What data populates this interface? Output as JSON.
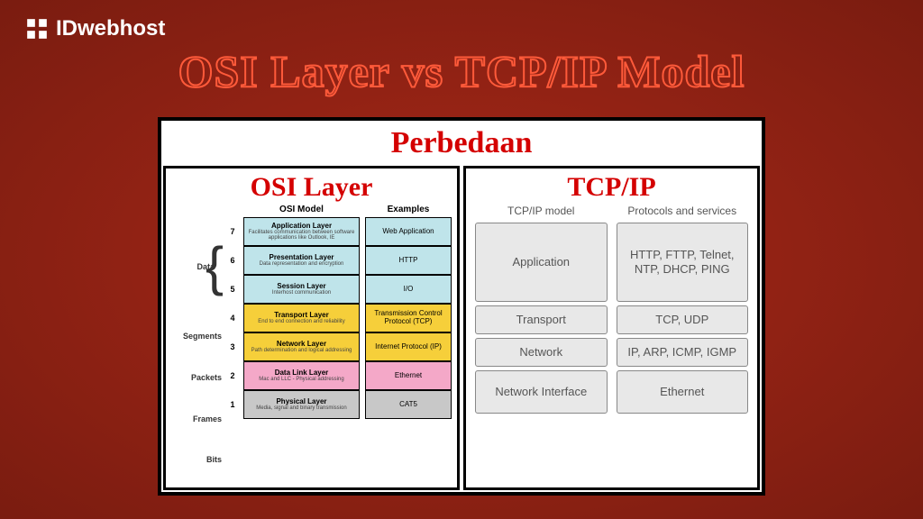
{
  "logo_text": "IDwebhost",
  "main_title": "OSI Layer vs TCP/IP Model",
  "panel_title": "Perbedaan",
  "osi": {
    "title": "OSI Layer",
    "model_header": "OSI Model",
    "examples_header": "Examples",
    "units": {
      "data": "Data",
      "segments": "Segments",
      "packets": "Packets",
      "frames": "Frames",
      "bits": "Bits"
    },
    "layers": [
      {
        "num": "7",
        "name": "Application Layer",
        "sub": "Facilitates communication between software applications like Outlook, IE",
        "color": "#bfe4ea",
        "example": "Web Application",
        "ex_color": "#bfe4ea"
      },
      {
        "num": "6",
        "name": "Presentation Layer",
        "sub": "Data representation and encryption",
        "color": "#bfe4ea",
        "example": "HTTP",
        "ex_color": "#bfe4ea"
      },
      {
        "num": "5",
        "name": "Session Layer",
        "sub": "Interhost communication",
        "color": "#bfe4ea",
        "example": "I/O",
        "ex_color": "#bfe4ea"
      },
      {
        "num": "4",
        "name": "Transport Layer",
        "sub": "End to end connection and reliability",
        "color": "#f6cf3a",
        "example": "Transmission Control Protocol (TCP)",
        "ex_color": "#f6cf3a"
      },
      {
        "num": "3",
        "name": "Network Layer",
        "sub": "Path determination and logical addressing",
        "color": "#f6cf3a",
        "example": "Internet Protocol (IP)",
        "ex_color": "#f6cf3a"
      },
      {
        "num": "2",
        "name": "Data Link Layer",
        "sub": "Mac and LLC - Physical addressing",
        "color": "#f4a8c8",
        "example": "Ethernet",
        "ex_color": "#f4a8c8"
      },
      {
        "num": "1",
        "name": "Physical Layer",
        "sub": "Media, signal and binary transmission",
        "color": "#c8c8c8",
        "example": "CAT5",
        "ex_color": "#c8c8c8"
      }
    ]
  },
  "tcpip": {
    "title": "TCP/IP",
    "model_header": "TCP/IP model",
    "protocols_header": "Protocols and services",
    "rows": [
      {
        "model": "Application",
        "protocol": "HTTP, FTTP, Telnet, NTP, DHCP, PING",
        "h": "h80"
      },
      {
        "model": "Transport",
        "protocol": "TCP, UDP",
        "h": "h32"
      },
      {
        "model": "Network",
        "protocol": "IP, ARP, ICMP, IGMP",
        "h": "h32"
      },
      {
        "model": "Network Interface",
        "protocol": "Ethernet",
        "h": "h44"
      }
    ]
  }
}
